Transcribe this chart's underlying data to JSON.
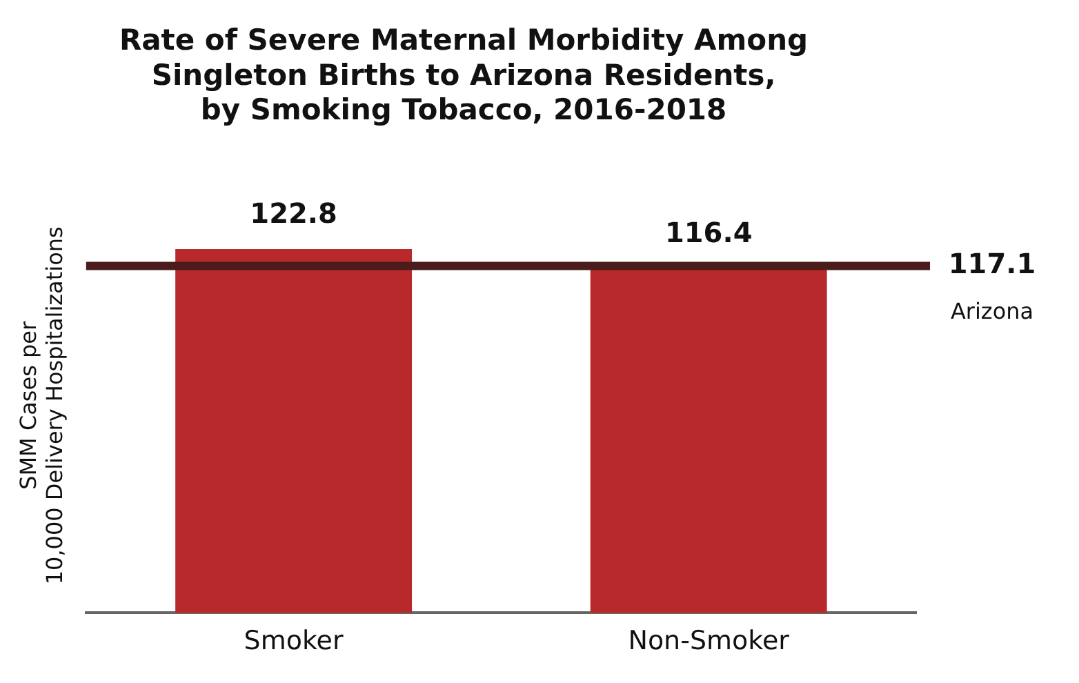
{
  "chart_data": {
    "type": "bar",
    "title": "Rate of Severe Maternal Morbidity Among\nSingleton Births to Arizona Residents,\nby Smoking Tobacco, 2016-2018",
    "ylabel": "SMM Cases per\n10,000 Delivery Hospitalizations",
    "categories": [
      "Smoker",
      "Non-Smoker"
    ],
    "values": [
      122.8,
      116.4
    ],
    "color": "#b8292b",
    "data_labels": true,
    "ref_lines": [
      {
        "axis": "y",
        "value": 117.1,
        "label": "117.1\nArizona",
        "color": "#4a1c1c"
      }
    ],
    "grid": false,
    "legend": false
  }
}
